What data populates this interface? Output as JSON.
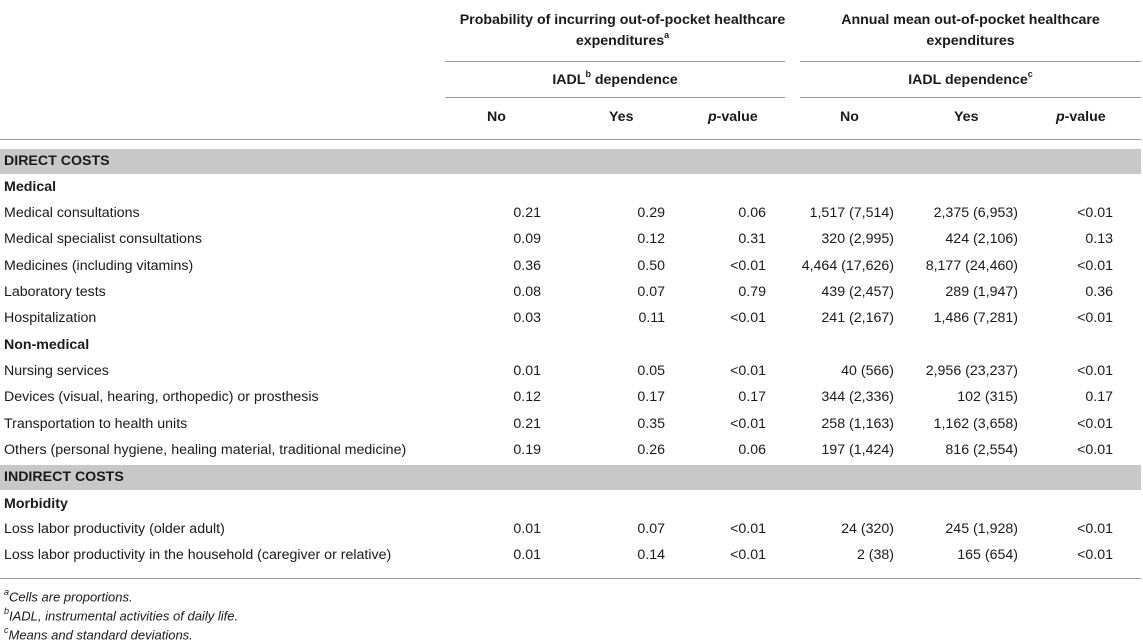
{
  "header": {
    "group1_title": "Probability of incurring out-of-pocket healthcare expenditures",
    "group1_title_sup": "a",
    "group2_title": "Annual mean out-of-pocket healthcare expenditures",
    "group1_sub_prefix": "IADL",
    "group1_sub_sup": "b",
    "group1_sub_suffix": " dependence",
    "group2_sub": "IADL dependence",
    "group2_sub_sup": "c",
    "col_no": "No",
    "col_yes": "Yes",
    "col_p_italic": "p",
    "col_p_rest": "-value"
  },
  "sections": {
    "direct": "DIRECT COSTS",
    "medical": "Medical",
    "non_medical": "Non-medical",
    "indirect": "INDIRECT COSTS",
    "morbidity": "Morbidity"
  },
  "rows": [
    {
      "label": "Medical consultations",
      "p_no": "0.21",
      "p_yes": "0.29",
      "p_p": "0.06",
      "m_no": "1,517 (7,514)",
      "m_yes": "2,375 (6,953)",
      "m_p": "<0.01"
    },
    {
      "label": "Medical specialist consultations",
      "p_no": "0.09",
      "p_yes": "0.12",
      "p_p": "0.31",
      "m_no": "320 (2,995)",
      "m_yes": "424 (2,106)",
      "m_p": "0.13"
    },
    {
      "label": "Medicines (including vitamins)",
      "p_no": "0.36",
      "p_yes": "0.50",
      "p_p": "<0.01",
      "m_no": "4,464 (17,626)",
      "m_yes": "8,177 (24,460)",
      "m_p": "<0.01"
    },
    {
      "label": "Laboratory tests",
      "p_no": "0.08",
      "p_yes": "0.07",
      "p_p": "0.79",
      "m_no": "439 (2,457)",
      "m_yes": "289 (1,947)",
      "m_p": "0.36"
    },
    {
      "label": "Hospitalization",
      "p_no": "0.03",
      "p_yes": "0.11",
      "p_p": "<0.01",
      "m_no": "241 (2,167)",
      "m_yes": "1,486 (7,281)",
      "m_p": "<0.01"
    },
    {
      "label": "Nursing services",
      "p_no": "0.01",
      "p_yes": "0.05",
      "p_p": "<0.01",
      "m_no": "40 (566)",
      "m_yes": "2,956 (23,237)",
      "m_p": "<0.01"
    },
    {
      "label": "Devices (visual, hearing, orthopedic) or prosthesis",
      "p_no": "0.12",
      "p_yes": "0.17",
      "p_p": "0.17",
      "m_no": "344 (2,336)",
      "m_yes": "102 (315)",
      "m_p": "0.17"
    },
    {
      "label": "Transportation to health units",
      "p_no": "0.21",
      "p_yes": "0.35",
      "p_p": "<0.01",
      "m_no": "258 (1,163)",
      "m_yes": "1,162 (3,658)",
      "m_p": "<0.01"
    },
    {
      "label": "Others (personal hygiene, healing material, traditional medicine)",
      "p_no": "0.19",
      "p_yes": "0.26",
      "p_p": "0.06",
      "m_no": "197 (1,424)",
      "m_yes": "816 (2,554)",
      "m_p": "<0.01"
    },
    {
      "label": "Loss labor productivity (older adult)",
      "p_no": "0.01",
      "p_yes": "0.07",
      "p_p": "<0.01",
      "m_no": "24 (320)",
      "m_yes": "245 (1,928)",
      "m_p": "<0.01"
    },
    {
      "label": "Loss labor productivity in the household (caregiver or relative)",
      "p_no": "0.01",
      "p_yes": "0.14",
      "p_p": "<0.01",
      "m_no": "2 (38)",
      "m_yes": "165 (654)",
      "m_p": "<0.01"
    }
  ],
  "footnotes": [
    {
      "mark": "a",
      "text": "Cells are proportions."
    },
    {
      "mark": "b",
      "text": "IADL, instrumental activities of daily life."
    },
    {
      "mark": "c",
      "text": "Means and standard deviations."
    }
  ]
}
